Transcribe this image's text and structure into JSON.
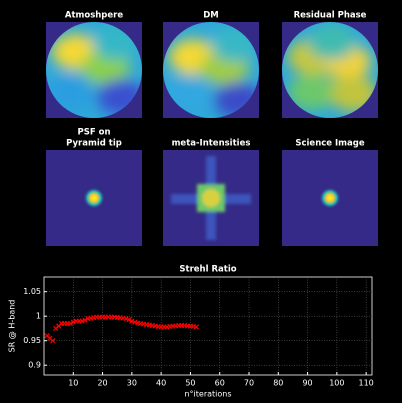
{
  "panels": [
    {
      "title": "Atmoshpere"
    },
    {
      "title": "DM"
    },
    {
      "title": "Residual Phase"
    },
    {
      "title": [
        "PSF on",
        "Pyramid tip"
      ]
    },
    {
      "title": "meta-Intensities"
    },
    {
      "title": "Science Image"
    }
  ],
  "chart_data": {
    "type": "scatter",
    "title": "Strehl Ratio",
    "x_label": "n°iterations",
    "y_label": "SR @ H-band",
    "x": [
      1,
      2,
      3,
      4,
      5,
      6,
      7,
      8,
      9,
      10,
      11,
      12,
      13,
      14,
      15,
      16,
      17,
      18,
      19,
      20,
      21,
      22,
      23,
      24,
      25,
      26,
      27,
      28,
      29,
      30,
      31,
      32,
      33,
      34,
      35,
      36,
      37,
      38,
      39,
      40,
      41,
      42,
      43,
      44,
      45,
      46,
      47,
      48,
      49,
      50,
      51,
      52
    ],
    "series": [
      {
        "color": "#ff0000",
        "values": [
          0.96,
          0.955,
          0.95,
          0.975,
          0.98,
          0.985,
          0.985,
          0.985,
          0.985,
          0.988,
          0.99,
          0.99,
          0.99,
          0.992,
          0.995,
          0.996,
          0.997,
          0.998,
          0.998,
          0.998,
          0.998,
          0.998,
          0.998,
          0.998,
          0.997,
          0.997,
          0.996,
          0.995,
          0.993,
          0.99,
          0.988,
          0.986,
          0.985,
          0.984,
          0.983,
          0.982,
          0.981,
          0.98,
          0.979,
          0.978,
          0.978,
          0.978,
          0.979,
          0.98,
          0.98,
          0.981,
          0.981,
          0.981,
          0.98,
          0.98,
          0.979,
          0.978
        ]
      }
    ],
    "xlim": [
      0,
      112
    ],
    "ylim": [
      0.88,
      1.08
    ],
    "xticks": [
      10,
      20,
      30,
      40,
      50,
      60,
      70,
      80,
      90,
      100,
      110
    ],
    "yticks": [
      0.9,
      0.95,
      1,
      1.05
    ],
    "grid": true
  }
}
